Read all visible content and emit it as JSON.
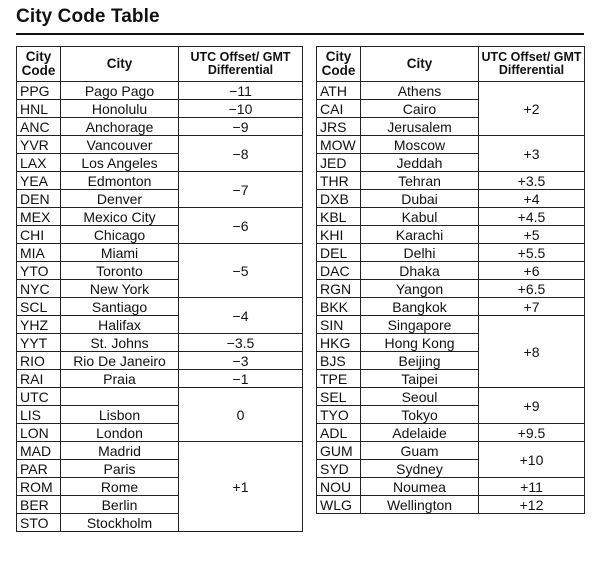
{
  "title": "City Code Table",
  "headers": {
    "code": "City Code",
    "city": "City",
    "offset": "UTC Offset/ GMT Differential"
  },
  "left_table": [
    {
      "code": "PPG",
      "city": "Pago Pago",
      "offset": "−11",
      "span": 1
    },
    {
      "code": "HNL",
      "city": "Honolulu",
      "offset": "−10",
      "span": 1
    },
    {
      "code": "ANC",
      "city": "Anchorage",
      "offset": "−9",
      "span": 1
    },
    {
      "code": "YVR",
      "city": "Vancouver",
      "offset": "−8",
      "span": 2
    },
    {
      "code": "LAX",
      "city": "Los Angeles"
    },
    {
      "code": "YEA",
      "city": "Edmonton",
      "offset": "−7",
      "span": 2
    },
    {
      "code": "DEN",
      "city": "Denver"
    },
    {
      "code": "MEX",
      "city": "Mexico City",
      "offset": "−6",
      "span": 2
    },
    {
      "code": "CHI",
      "city": "Chicago"
    },
    {
      "code": "MIA",
      "city": "Miami",
      "offset": "−5",
      "span": 3
    },
    {
      "code": "YTO",
      "city": "Toronto"
    },
    {
      "code": "NYC",
      "city": "New York"
    },
    {
      "code": "SCL",
      "city": "Santiago",
      "offset": "−4",
      "span": 2
    },
    {
      "code": "YHZ",
      "city": "Halifax"
    },
    {
      "code": "YYT",
      "city": "St. Johns",
      "offset": "−3.5",
      "span": 1
    },
    {
      "code": "RIO",
      "city": "Rio De Janeiro",
      "offset": "−3",
      "span": 1
    },
    {
      "code": "RAI",
      "city": "Praia",
      "offset": "−1",
      "span": 1
    },
    {
      "code": "UTC",
      "city": "",
      "offset": "0",
      "span": 3
    },
    {
      "code": "LIS",
      "city": "Lisbon"
    },
    {
      "code": "LON",
      "city": "London"
    },
    {
      "code": "MAD",
      "city": "Madrid",
      "offset": "+1",
      "span": 5
    },
    {
      "code": "PAR",
      "city": "Paris"
    },
    {
      "code": "ROM",
      "city": "Rome"
    },
    {
      "code": "BER",
      "city": "Berlin"
    },
    {
      "code": "STO",
      "city": "Stockholm"
    }
  ],
  "right_table": [
    {
      "code": "ATH",
      "city": "Athens",
      "offset": "+2",
      "span": 3
    },
    {
      "code": "CAI",
      "city": "Cairo"
    },
    {
      "code": "JRS",
      "city": "Jerusalem"
    },
    {
      "code": "MOW",
      "city": "Moscow",
      "offset": "+3",
      "span": 2
    },
    {
      "code": "JED",
      "city": "Jeddah"
    },
    {
      "code": "THR",
      "city": "Tehran",
      "offset": "+3.5",
      "span": 1
    },
    {
      "code": "DXB",
      "city": "Dubai",
      "offset": "+4",
      "span": 1
    },
    {
      "code": "KBL",
      "city": "Kabul",
      "offset": "+4.5",
      "span": 1
    },
    {
      "code": "KHI",
      "city": "Karachi",
      "offset": "+5",
      "span": 1
    },
    {
      "code": "DEL",
      "city": "Delhi",
      "offset": "+5.5",
      "span": 1
    },
    {
      "code": "DAC",
      "city": "Dhaka",
      "offset": "+6",
      "span": 1
    },
    {
      "code": "RGN",
      "city": "Yangon",
      "offset": "+6.5",
      "span": 1
    },
    {
      "code": "BKK",
      "city": "Bangkok",
      "offset": "+7",
      "span": 1
    },
    {
      "code": "SIN",
      "city": "Singapore",
      "offset": "+8",
      "span": 4
    },
    {
      "code": "HKG",
      "city": "Hong Kong"
    },
    {
      "code": "BJS",
      "city": "Beijing"
    },
    {
      "code": "TPE",
      "city": "Taipei"
    },
    {
      "code": "SEL",
      "city": "Seoul",
      "offset": "+9",
      "span": 2
    },
    {
      "code": "TYO",
      "city": "Tokyo"
    },
    {
      "code": "ADL",
      "city": "Adelaide",
      "offset": "+9.5",
      "span": 1
    },
    {
      "code": "GUM",
      "city": "Guam",
      "offset": "+10",
      "span": 2
    },
    {
      "code": "SYD",
      "city": "Sydney"
    },
    {
      "code": "NOU",
      "city": "Noumea",
      "offset": "+11",
      "span": 1
    },
    {
      "code": "WLG",
      "city": "Wellington",
      "offset": "+12",
      "span": 1
    }
  ]
}
